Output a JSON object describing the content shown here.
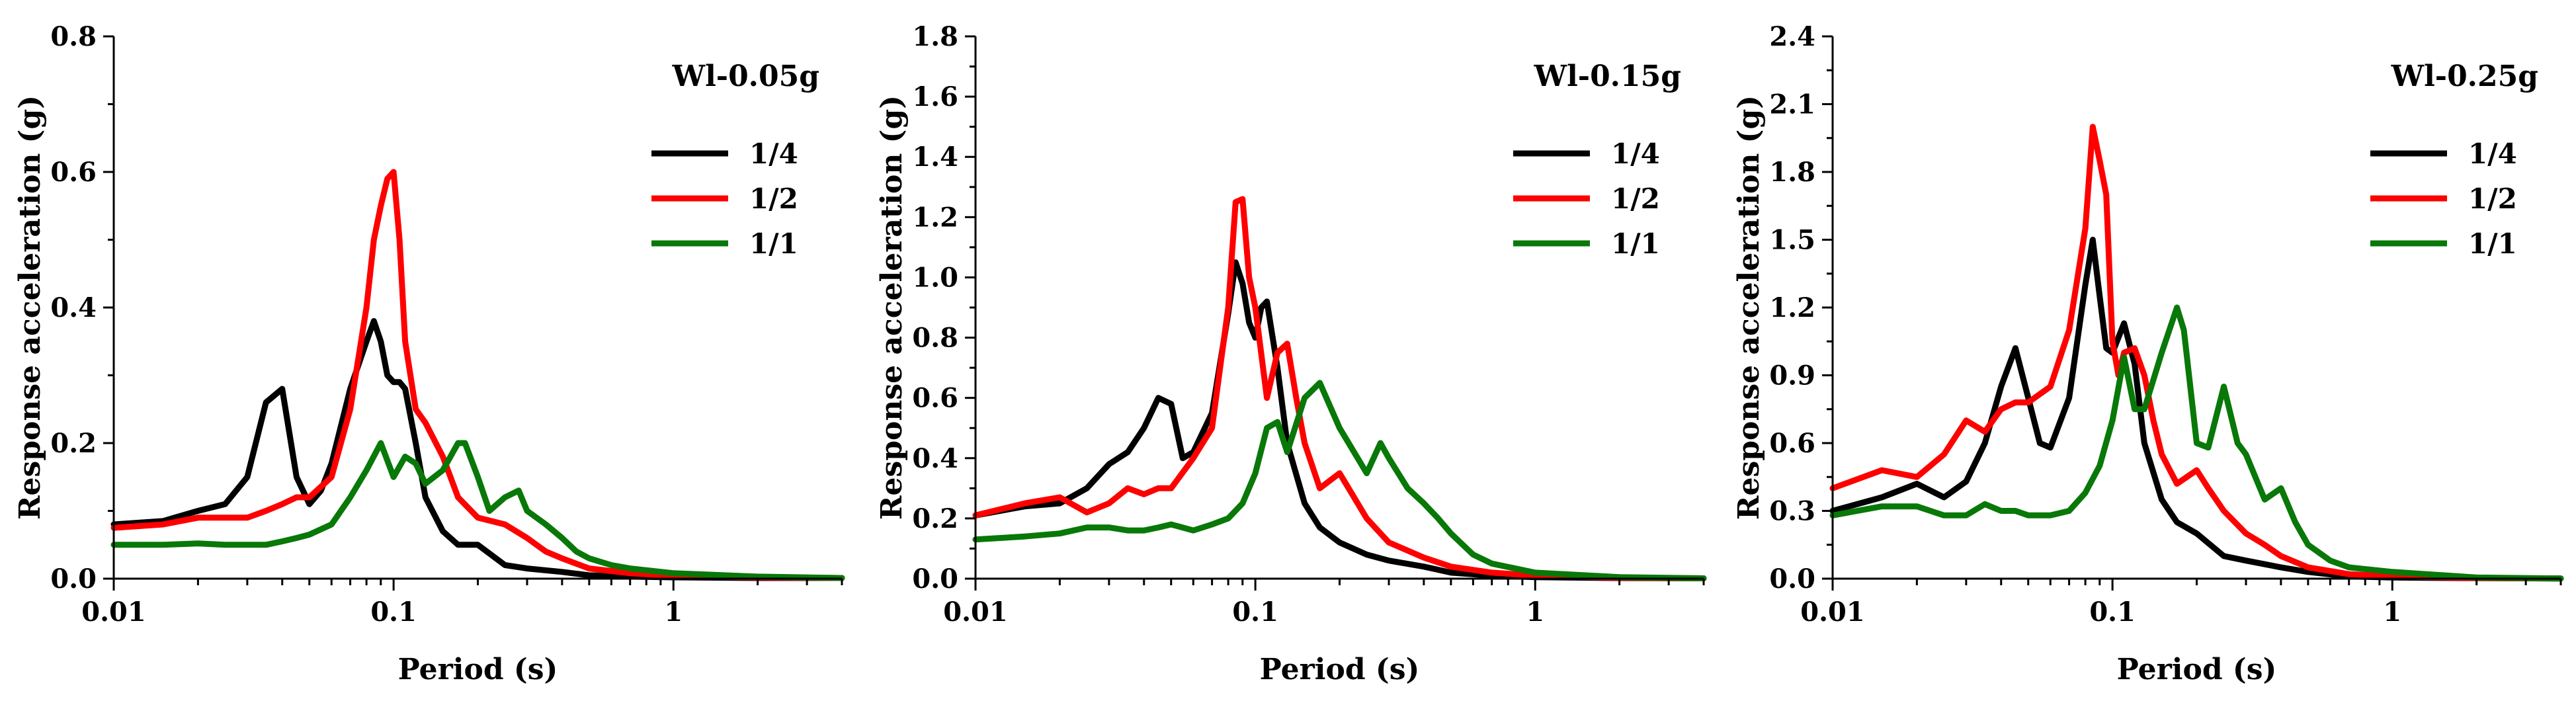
{
  "chart_data": [
    {
      "type": "line",
      "title": "Wl-0.05g",
      "xlabel": "Period (s)",
      "ylabel": "Response acceleration (g)",
      "xscale": "log",
      "xlim": [
        0.01,
        4
      ],
      "ylim": [
        0,
        0.8
      ],
      "yticks": [
        0.0,
        0.2,
        0.4,
        0.6,
        0.8
      ],
      "ytick_labels": [
        "0.0",
        "0.2",
        "0.4",
        "0.6",
        "0.8"
      ],
      "xticks": [
        0.01,
        0.1,
        1
      ],
      "xtick_labels": [
        "0.01",
        "0.1",
        "1"
      ],
      "legend_position": "top-right",
      "series": [
        {
          "name": "1/4",
          "color": "#000000",
          "x": [
            0.01,
            0.015,
            0.02,
            0.025,
            0.03,
            0.035,
            0.04,
            0.045,
            0.05,
            0.055,
            0.06,
            0.07,
            0.08,
            0.085,
            0.09,
            0.095,
            0.1,
            0.105,
            0.11,
            0.12,
            0.13,
            0.15,
            0.17,
            0.2,
            0.25,
            0.3,
            0.4,
            0.5,
            0.7,
            1,
            2,
            4
          ],
          "y": [
            0.08,
            0.085,
            0.1,
            0.11,
            0.15,
            0.26,
            0.28,
            0.15,
            0.11,
            0.13,
            0.17,
            0.28,
            0.35,
            0.38,
            0.35,
            0.3,
            0.29,
            0.29,
            0.28,
            0.2,
            0.12,
            0.07,
            0.05,
            0.05,
            0.02,
            0.015,
            0.01,
            0.005,
            0.003,
            0.002,
            0.001,
            0.001
          ]
        },
        {
          "name": "1/2",
          "color": "#ff0000",
          "x": [
            0.01,
            0.015,
            0.02,
            0.025,
            0.03,
            0.035,
            0.04,
            0.045,
            0.05,
            0.06,
            0.07,
            0.08,
            0.085,
            0.09,
            0.095,
            0.1,
            0.105,
            0.11,
            0.12,
            0.13,
            0.15,
            0.17,
            0.2,
            0.25,
            0.3,
            0.35,
            0.4,
            0.5,
            0.7,
            1,
            2,
            4
          ],
          "y": [
            0.075,
            0.08,
            0.09,
            0.09,
            0.09,
            0.1,
            0.11,
            0.12,
            0.12,
            0.15,
            0.25,
            0.4,
            0.5,
            0.55,
            0.59,
            0.6,
            0.5,
            0.35,
            0.25,
            0.23,
            0.18,
            0.12,
            0.09,
            0.08,
            0.06,
            0.04,
            0.03,
            0.015,
            0.008,
            0.004,
            0.002,
            0.001
          ]
        },
        {
          "name": "1/1",
          "color": "#087808",
          "x": [
            0.01,
            0.015,
            0.02,
            0.025,
            0.03,
            0.035,
            0.04,
            0.045,
            0.05,
            0.06,
            0.07,
            0.08,
            0.09,
            0.1,
            0.11,
            0.12,
            0.13,
            0.15,
            0.17,
            0.18,
            0.2,
            0.22,
            0.25,
            0.28,
            0.3,
            0.35,
            0.4,
            0.45,
            0.5,
            0.6,
            0.7,
            1,
            2,
            4
          ],
          "y": [
            0.05,
            0.05,
            0.052,
            0.05,
            0.05,
            0.05,
            0.055,
            0.06,
            0.065,
            0.08,
            0.12,
            0.16,
            0.2,
            0.15,
            0.18,
            0.17,
            0.14,
            0.16,
            0.2,
            0.2,
            0.15,
            0.1,
            0.12,
            0.13,
            0.1,
            0.08,
            0.06,
            0.04,
            0.03,
            0.02,
            0.015,
            0.008,
            0.003,
            0.001
          ]
        }
      ]
    },
    {
      "type": "line",
      "title": "Wl-0.15g",
      "xlabel": "Period (s)",
      "ylabel": "Response acceleration (g)",
      "xscale": "log",
      "xlim": [
        0.01,
        4
      ],
      "ylim": [
        0,
        1.8
      ],
      "yticks": [
        0.0,
        0.2,
        0.4,
        0.6,
        0.8,
        1.0,
        1.2,
        1.4,
        1.6,
        1.8
      ],
      "ytick_labels": [
        "0.0",
        "0.2",
        "0.4",
        "0.6",
        "0.8",
        "1.0",
        "1.2",
        "1.4",
        "1.6",
        "1.8"
      ],
      "xticks": [
        0.01,
        0.1,
        1
      ],
      "xtick_labels": [
        "0.01",
        "0.1",
        "1"
      ],
      "legend_position": "top-right",
      "series": [
        {
          "name": "1/4",
          "color": "#000000",
          "x": [
            0.01,
            0.015,
            0.02,
            0.025,
            0.03,
            0.035,
            0.04,
            0.045,
            0.05,
            0.055,
            0.06,
            0.07,
            0.08,
            0.085,
            0.09,
            0.095,
            0.1,
            0.105,
            0.11,
            0.12,
            0.13,
            0.15,
            0.17,
            0.2,
            0.25,
            0.3,
            0.4,
            0.5,
            0.7,
            1,
            2,
            4
          ],
          "y": [
            0.21,
            0.24,
            0.25,
            0.3,
            0.38,
            0.42,
            0.5,
            0.6,
            0.58,
            0.4,
            0.42,
            0.55,
            0.88,
            1.05,
            0.98,
            0.85,
            0.8,
            0.9,
            0.92,
            0.7,
            0.45,
            0.25,
            0.17,
            0.12,
            0.08,
            0.06,
            0.04,
            0.02,
            0.01,
            0.005,
            0.002,
            0.001
          ]
        },
        {
          "name": "1/2",
          "color": "#ff0000",
          "x": [
            0.01,
            0.015,
            0.02,
            0.025,
            0.03,
            0.035,
            0.04,
            0.045,
            0.05,
            0.06,
            0.07,
            0.08,
            0.085,
            0.09,
            0.095,
            0.1,
            0.11,
            0.12,
            0.13,
            0.14,
            0.15,
            0.17,
            0.2,
            0.25,
            0.3,
            0.4,
            0.5,
            0.7,
            1,
            2,
            4
          ],
          "y": [
            0.21,
            0.25,
            0.27,
            0.22,
            0.25,
            0.3,
            0.28,
            0.3,
            0.3,
            0.4,
            0.5,
            0.9,
            1.25,
            1.26,
            1.0,
            0.9,
            0.6,
            0.75,
            0.78,
            0.6,
            0.45,
            0.3,
            0.35,
            0.2,
            0.12,
            0.07,
            0.04,
            0.02,
            0.01,
            0.003,
            0.001
          ]
        },
        {
          "name": "1/1",
          "color": "#087808",
          "x": [
            0.01,
            0.015,
            0.02,
            0.025,
            0.03,
            0.035,
            0.04,
            0.045,
            0.05,
            0.06,
            0.07,
            0.08,
            0.09,
            0.1,
            0.11,
            0.12,
            0.13,
            0.15,
            0.17,
            0.2,
            0.25,
            0.28,
            0.3,
            0.35,
            0.4,
            0.45,
            0.5,
            0.6,
            0.7,
            1,
            2,
            4
          ],
          "y": [
            0.13,
            0.14,
            0.15,
            0.17,
            0.17,
            0.16,
            0.16,
            0.17,
            0.18,
            0.16,
            0.18,
            0.2,
            0.25,
            0.35,
            0.5,
            0.52,
            0.42,
            0.6,
            0.65,
            0.5,
            0.35,
            0.45,
            0.4,
            0.3,
            0.25,
            0.2,
            0.15,
            0.08,
            0.05,
            0.02,
            0.005,
            0.001
          ]
        }
      ]
    },
    {
      "type": "line",
      "title": "Wl-0.25g",
      "xlabel": "Period (s)",
      "ylabel": "Response acceleration (g)",
      "xscale": "log",
      "xlim": [
        0.01,
        4
      ],
      "ylim": [
        0,
        2.4
      ],
      "yticks": [
        0.0,
        0.3,
        0.6,
        0.9,
        1.2,
        1.5,
        1.8,
        2.1,
        2.4
      ],
      "ytick_labels": [
        "0.0",
        "0.3",
        "0.6",
        "0.9",
        "1.2",
        "1.5",
        "1.8",
        "2.1",
        "2.4"
      ],
      "xticks": [
        0.01,
        0.1,
        1
      ],
      "xtick_labels": [
        "0.01",
        "0.1",
        "1"
      ],
      "legend_position": "top-right",
      "series": [
        {
          "name": "1/4",
          "color": "#000000",
          "x": [
            0.01,
            0.015,
            0.02,
            0.025,
            0.03,
            0.035,
            0.04,
            0.045,
            0.05,
            0.055,
            0.06,
            0.07,
            0.08,
            0.085,
            0.09,
            0.095,
            0.1,
            0.11,
            0.12,
            0.13,
            0.15,
            0.17,
            0.2,
            0.25,
            0.3,
            0.4,
            0.5,
            0.7,
            1,
            2,
            4
          ],
          "y": [
            0.3,
            0.36,
            0.42,
            0.36,
            0.43,
            0.6,
            0.85,
            1.02,
            0.8,
            0.6,
            0.58,
            0.8,
            1.3,
            1.5,
            1.25,
            1.02,
            1.0,
            1.13,
            0.95,
            0.6,
            0.35,
            0.25,
            0.2,
            0.1,
            0.08,
            0.05,
            0.03,
            0.01,
            0.005,
            0.002,
            0.001
          ]
        },
        {
          "name": "1/2",
          "color": "#ff0000",
          "x": [
            0.01,
            0.015,
            0.02,
            0.025,
            0.03,
            0.035,
            0.04,
            0.045,
            0.05,
            0.06,
            0.07,
            0.08,
            0.085,
            0.09,
            0.095,
            0.1,
            0.105,
            0.11,
            0.12,
            0.13,
            0.14,
            0.15,
            0.17,
            0.2,
            0.22,
            0.25,
            0.3,
            0.35,
            0.4,
            0.5,
            0.7,
            1,
            2,
            4
          ],
          "y": [
            0.4,
            0.48,
            0.45,
            0.55,
            0.7,
            0.65,
            0.75,
            0.78,
            0.78,
            0.85,
            1.1,
            1.55,
            2.0,
            1.85,
            1.7,
            1.05,
            0.9,
            1.0,
            1.02,
            0.9,
            0.7,
            0.55,
            0.42,
            0.48,
            0.4,
            0.3,
            0.2,
            0.15,
            0.1,
            0.05,
            0.02,
            0.01,
            0.003,
            0.001
          ]
        },
        {
          "name": "1/1",
          "color": "#087808",
          "x": [
            0.01,
            0.015,
            0.02,
            0.025,
            0.03,
            0.035,
            0.04,
            0.045,
            0.05,
            0.06,
            0.07,
            0.08,
            0.09,
            0.1,
            0.11,
            0.12,
            0.13,
            0.15,
            0.17,
            0.18,
            0.2,
            0.22,
            0.25,
            0.28,
            0.3,
            0.35,
            0.4,
            0.45,
            0.5,
            0.6,
            0.7,
            1,
            2,
            4
          ],
          "y": [
            0.28,
            0.32,
            0.32,
            0.28,
            0.28,
            0.33,
            0.3,
            0.3,
            0.28,
            0.28,
            0.3,
            0.38,
            0.5,
            0.7,
            0.98,
            0.75,
            0.75,
            1.0,
            1.2,
            1.1,
            0.6,
            0.58,
            0.85,
            0.6,
            0.55,
            0.35,
            0.4,
            0.25,
            0.15,
            0.08,
            0.05,
            0.03,
            0.005,
            0.001
          ]
        }
      ]
    }
  ]
}
